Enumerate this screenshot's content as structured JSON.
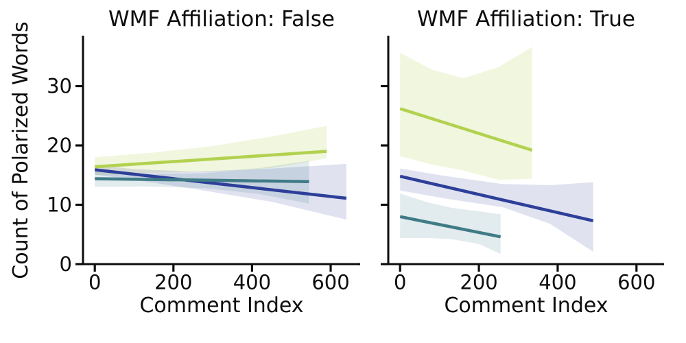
{
  "figure": {
    "background": "#ffffff",
    "ylabel": "Count of Polarized Words"
  },
  "chart_data": [
    {
      "type": "line",
      "title": "WMF Affiliation: False",
      "xlabel": "Comment Index",
      "ylabel": "Count of Polarized Words",
      "xlim": [
        -30,
        675
      ],
      "ylim": [
        0,
        38.5
      ],
      "xticks": [
        0,
        200,
        400,
        600
      ],
      "yticks": [
        0,
        10,
        20,
        30
      ],
      "y_tick_labels_visible": true,
      "grid": false,
      "legend": "none",
      "series": [
        {
          "name": "group-green",
          "color": "#b2d14f",
          "band_opacity": 0.19,
          "x": [
            0,
            590
          ],
          "y": [
            16.4,
            19.0
          ],
          "ci": {
            "x": [
              0,
              150,
              300,
              450,
              590
            ],
            "upper": [
              18.0,
              18.8,
              19.9,
              21.5,
              23.3
            ],
            "lower": [
              15.0,
              15.4,
              15.6,
              16.2,
              17.8
            ]
          }
        },
        {
          "name": "group-blue",
          "color": "#2d3f99",
          "band_opacity": 0.15,
          "x": [
            0,
            640
          ],
          "y": [
            15.9,
            11.1
          ],
          "ci": {
            "x": [
              0,
              100,
              250,
              450,
              640
            ],
            "upper": [
              16.7,
              16.0,
              15.6,
              16.1,
              16.9
            ],
            "lower": [
              15.1,
              14.2,
              12.7,
              10.5,
              7.5
            ]
          }
        },
        {
          "name": "group-teal",
          "color": "#3f7b86",
          "band_opacity": 0.15,
          "x": [
            0,
            545
          ],
          "y": [
            14.4,
            13.9
          ],
          "ci": {
            "x": [
              0,
              130,
              280,
              420,
              545
            ],
            "upper": [
              15.6,
              15.2,
              15.3,
              16.2,
              17.4
            ],
            "lower": [
              13.0,
              13.1,
              12.8,
              11.8,
              10.2
            ]
          }
        }
      ]
    },
    {
      "type": "line",
      "title": "WMF Affiliation: True",
      "xlabel": "Comment Index",
      "ylabel": "Count of Polarized Words",
      "xlim": [
        -30,
        670
      ],
      "ylim": [
        0,
        38.5
      ],
      "xticks": [
        0,
        200,
        400,
        600
      ],
      "yticks": [
        0,
        10,
        20,
        30
      ],
      "y_tick_labels_visible": false,
      "grid": false,
      "legend": "none",
      "series": [
        {
          "name": "group-green",
          "color": "#b2d14f",
          "band_opacity": 0.19,
          "x": [
            0,
            335
          ],
          "y": [
            26.2,
            19.2
          ],
          "ci": {
            "x": [
              0,
              80,
              160,
              250,
              335
            ],
            "upper": [
              35.6,
              32.8,
              31.3,
              33.2,
              36.6
            ],
            "lower": [
              18.2,
              16.8,
              15.8,
              14.2,
              14.4
            ]
          }
        },
        {
          "name": "group-blue",
          "color": "#2d3f99",
          "band_opacity": 0.15,
          "x": [
            0,
            490
          ],
          "y": [
            14.8,
            7.3
          ],
          "ci": {
            "x": [
              0,
              120,
              260,
              380,
              490
            ],
            "upper": [
              16.1,
              14.8,
              13.5,
              13.3,
              13.8
            ],
            "lower": [
              12.4,
              11.0,
              9.6,
              6.8,
              2.1
            ]
          }
        },
        {
          "name": "group-teal",
          "color": "#3f7b86",
          "band_opacity": 0.15,
          "x": [
            0,
            255
          ],
          "y": [
            8.0,
            4.6
          ],
          "ci": {
            "x": [
              0,
              70,
              130,
              200,
              255
            ],
            "upper": [
              11.9,
              10.4,
              9.5,
              8.9,
              8.4
            ],
            "lower": [
              4.4,
              4.4,
              4.2,
              3.4,
              1.7
            ]
          }
        }
      ]
    }
  ]
}
